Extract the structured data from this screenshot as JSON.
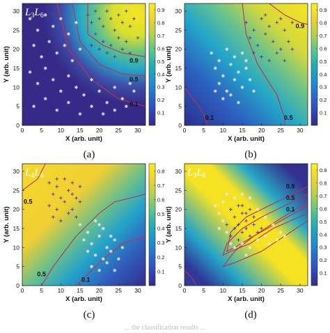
{
  "figure": {
    "caption": "... the classification results ..."
  },
  "chart_data": [
    {
      "type": "heatmap",
      "panel_label": "(a)",
      "title": "L3L6",
      "title_parts": [
        "L",
        "3",
        "L",
        "6"
      ],
      "xlabel": "X (arb. unit)",
      "ylabel": "Y (arb. unit)",
      "xlim": [
        0,
        32
      ],
      "ylim": [
        0,
        32
      ],
      "xticks": [
        0,
        5,
        10,
        15,
        20,
        25,
        30
      ],
      "yticks": [
        0,
        5,
        10,
        15,
        20,
        25,
        30
      ],
      "colorbar": {
        "range": [
          0,
          0.95
        ],
        "ticks": [
          "0.1",
          "0.2",
          "0.3",
          "0.4",
          "0.5",
          "0.6",
          "0.7",
          "0.8",
          "0.9"
        ]
      },
      "contour_levels": [
        "0.9",
        "0.5",
        "0.1"
      ],
      "colors": {
        "low": "#3a2f8f",
        "mid": "#20a8c8",
        "high": "#f5e02a",
        "contour": "#c0304a"
      },
      "series": [
        {
          "name": "class-plus",
          "marker": "+",
          "color": "#4a3a9a",
          "points": [
            [
              17,
              29
            ],
            [
              18,
              27
            ],
            [
              19,
              30
            ],
            [
              20,
              28
            ],
            [
              21,
              26
            ],
            [
              22,
              30
            ],
            [
              23,
              28
            ],
            [
              24,
              25
            ],
            [
              25,
              29
            ],
            [
              26,
              27
            ],
            [
              27,
              30
            ],
            [
              28,
              26
            ],
            [
              29,
              28
            ],
            [
              19,
              24
            ],
            [
              21,
              22
            ],
            [
              23,
              21
            ],
            [
              25,
              23
            ],
            [
              27,
              22
            ],
            [
              20,
              20
            ],
            [
              18,
              21
            ],
            [
              22,
              19
            ],
            [
              24,
              18
            ],
            [
              26,
              20
            ],
            [
              28,
              19
            ],
            [
              30,
              23
            ]
          ]
        },
        {
          "name": "class-star",
          "marker": "*",
          "color": "#e6e6ee",
          "points": [
            [
              2,
              28
            ],
            [
              4,
              25
            ],
            [
              6,
              29
            ],
            [
              8,
              26
            ],
            [
              10,
              28
            ],
            [
              12,
              24
            ],
            [
              14,
              27
            ],
            [
              3,
              21
            ],
            [
              5,
              18
            ],
            [
              7,
              22
            ],
            [
              9,
              19
            ],
            [
              11,
              21
            ],
            [
              13,
              17
            ],
            [
              15,
              20
            ],
            [
              2,
              14
            ],
            [
              4,
              11
            ],
            [
              6,
              15
            ],
            [
              8,
              12
            ],
            [
              10,
              9
            ],
            [
              12,
              13
            ],
            [
              14,
              10
            ],
            [
              16,
              8
            ],
            [
              18,
              12
            ],
            [
              20,
              9
            ],
            [
              22,
              6
            ],
            [
              24,
              10
            ],
            [
              26,
              7
            ],
            [
              28,
              11
            ],
            [
              3,
              5
            ],
            [
              6,
              7
            ],
            [
              9,
              4
            ],
            [
              12,
              6
            ],
            [
              15,
              3
            ],
            [
              18,
              5
            ],
            [
              21,
              3
            ],
            [
              24,
              4
            ],
            [
              27,
              5
            ],
            [
              29,
              9
            ]
          ]
        }
      ]
    },
    {
      "type": "heatmap",
      "panel_label": "(b)",
      "title": "",
      "xlabel": "X (arb. unit)",
      "ylabel": "Y (arb. unit)",
      "xlim": [
        0,
        32
      ],
      "ylim": [
        0,
        32
      ],
      "xticks": [
        0,
        5,
        10,
        15,
        20,
        25,
        30
      ],
      "yticks": [
        0,
        5,
        10,
        15,
        20,
        25,
        30
      ],
      "colorbar": {
        "range": [
          0,
          0.95
        ],
        "ticks": [
          "0.1",
          "0.2",
          "0.3",
          "0.4",
          "0.5",
          "0.6",
          "0.7",
          "0.8",
          "0.9"
        ]
      },
      "contour_levels": [
        "0.9",
        "0.5",
        "0.1"
      ],
      "colors": {
        "low": "#3a2f8f",
        "mid": "#20a8c8",
        "high": "#f5e02a",
        "contour": "#c0304a"
      },
      "series": [
        {
          "name": "class-plus",
          "marker": "+",
          "color": "#4a3a9a",
          "points": [
            [
              16,
              27
            ],
            [
              18,
              25
            ],
            [
              20,
              28
            ],
            [
              22,
              26
            ],
            [
              24,
              27
            ],
            [
              26,
              25
            ],
            [
              28,
              27
            ],
            [
              17,
              23
            ],
            [
              19,
              21
            ],
            [
              21,
              24
            ],
            [
              23,
              22
            ],
            [
              25,
              20
            ],
            [
              27,
              22
            ],
            [
              18,
              19
            ],
            [
              20,
              18
            ],
            [
              22,
              17
            ],
            [
              24,
              19
            ],
            [
              26,
              17
            ],
            [
              28,
              20
            ],
            [
              21,
              29
            ],
            [
              25,
              28
            ]
          ]
        },
        {
          "name": "class-star",
          "marker": "*",
          "color": "#e6e6ee",
          "points": [
            [
              7,
              19
            ],
            [
              9,
              17
            ],
            [
              11,
              20
            ],
            [
              13,
              18
            ],
            [
              15,
              19
            ],
            [
              8,
              15
            ],
            [
              10,
              13
            ],
            [
              12,
              16
            ],
            [
              14,
              14
            ],
            [
              16,
              15
            ],
            [
              9,
              11
            ],
            [
              11,
              9
            ],
            [
              13,
              12
            ],
            [
              15,
              10
            ],
            [
              17,
              12
            ],
            [
              10,
              7
            ],
            [
              12,
              8
            ],
            [
              14,
              6
            ],
            [
              18,
              9
            ],
            [
              8,
              9
            ],
            [
              16,
              17
            ]
          ]
        }
      ]
    },
    {
      "type": "heatmap",
      "panel_label": "(c)",
      "title": "L4L6",
      "title_parts": [
        "L",
        "4",
        "L",
        "6"
      ],
      "xlabel": "X (arb. unit)",
      "ylabel": "Y (arb. unit)",
      "xlim": [
        0,
        32
      ],
      "ylim": [
        0,
        32
      ],
      "xticks": [
        0,
        5,
        10,
        15,
        20,
        25,
        30
      ],
      "yticks": [
        0,
        5,
        10,
        15,
        20,
        25,
        30
      ],
      "colorbar": {
        "range": [
          0,
          0.85
        ],
        "ticks": [
          "0.1",
          "0.2",
          "0.3",
          "0.4",
          "0.5",
          "0.6",
          "0.7",
          "0.8"
        ]
      },
      "contour_levels": [
        "0.5",
        "0.5",
        "0.1"
      ],
      "colors": {
        "low": "#3a2f8f",
        "mid": "#20a8c8",
        "high": "#f5e02a",
        "contour": "#c0304a"
      },
      "series": [
        {
          "name": "class-plus",
          "marker": "+",
          "color": "#4a3a9a",
          "points": [
            [
              7,
              27
            ],
            [
              9,
              26
            ],
            [
              11,
              28
            ],
            [
              13,
              27
            ],
            [
              15,
              26
            ],
            [
              8,
              24
            ],
            [
              10,
              23
            ],
            [
              12,
              25
            ],
            [
              14,
              23
            ],
            [
              7,
              21
            ],
            [
              9,
              20
            ],
            [
              11,
              22
            ],
            [
              13,
              20
            ],
            [
              15,
              22
            ],
            [
              8,
              18
            ],
            [
              10,
              17
            ],
            [
              12,
              19
            ],
            [
              14,
              18
            ],
            [
              9,
              28
            ],
            [
              13,
              24
            ]
          ]
        },
        {
          "name": "class-star",
          "marker": "*",
          "color": "#e6e6ee",
          "points": [
            [
              15,
              16
            ],
            [
              17,
              14
            ],
            [
              19,
              17
            ],
            [
              21,
              15
            ],
            [
              23,
              13
            ],
            [
              16,
              12
            ],
            [
              18,
              11
            ],
            [
              20,
              13
            ],
            [
              22,
              10
            ],
            [
              24,
              12
            ],
            [
              17,
              9
            ],
            [
              19,
              8
            ],
            [
              21,
              7
            ],
            [
              23,
              9
            ],
            [
              25,
              7
            ],
            [
              18,
              5
            ],
            [
              20,
              4
            ],
            [
              22,
              6
            ],
            [
              24,
              4
            ],
            [
              26,
              10
            ],
            [
              20,
              16
            ]
          ]
        }
      ]
    },
    {
      "type": "heatmap",
      "panel_label": "(d)",
      "title": "L3L6",
      "title_parts": [
        "L",
        "3",
        "L",
        "6"
      ],
      "xlabel": "X (arb. unit)",
      "ylabel": "Y (arb. unit)",
      "xlim": [
        0,
        32
      ],
      "ylim": [
        0,
        32
      ],
      "xticks": [
        0,
        5,
        10,
        15,
        20,
        25,
        30
      ],
      "yticks": [
        0,
        5,
        10,
        15,
        20,
        25,
        30
      ],
      "colorbar": {
        "range": [
          0,
          0.95
        ],
        "ticks": [
          "0.1",
          "0.2",
          "0.3",
          "0.4",
          "0.5",
          "0.6",
          "0.7",
          "0.8",
          "0.9"
        ]
      },
      "contour_levels": [
        "0.9",
        "0.5",
        "0.1"
      ],
      "colors": {
        "low": "#3a2f8f",
        "mid": "#20a8c8",
        "high": "#f5e02a",
        "contour": "#c0304a"
      },
      "series": [
        {
          "name": "class-plus",
          "marker": "+",
          "color": "#4a3a9a",
          "points": [
            [
              12,
              20
            ],
            [
              13,
              18
            ],
            [
              14,
              21
            ],
            [
              15,
              19
            ],
            [
              16,
              17
            ],
            [
              17,
              20
            ],
            [
              13,
              15
            ],
            [
              14,
              16
            ],
            [
              15,
              14
            ],
            [
              16,
              15
            ],
            [
              17,
              13
            ],
            [
              18,
              16
            ],
            [
              19,
              14
            ],
            [
              12,
              13
            ],
            [
              14,
              12
            ],
            [
              16,
              19
            ],
            [
              18,
              18
            ],
            [
              15,
              21
            ],
            [
              20,
              15
            ],
            [
              11,
              16
            ]
          ]
        },
        {
          "name": "class-star",
          "marker": "*",
          "color": "#e6e6ee",
          "points": [
            [
              8,
              21
            ],
            [
              9,
              19
            ],
            [
              10,
              17
            ],
            [
              11,
              14
            ],
            [
              12,
              11
            ],
            [
              13,
              10
            ],
            [
              15,
              11
            ],
            [
              17,
              10
            ],
            [
              19,
              12
            ],
            [
              21,
              13
            ],
            [
              22,
              11
            ],
            [
              24,
              12
            ],
            [
              26,
              13
            ],
            [
              10,
              22
            ],
            [
              11,
              24
            ],
            [
              13,
              23
            ],
            [
              15,
              24
            ],
            [
              17,
              23
            ],
            [
              19,
              20
            ],
            [
              21,
              18
            ],
            [
              23,
              16
            ],
            [
              25,
              14
            ],
            [
              9,
              15
            ],
            [
              16,
              8
            ]
          ]
        }
      ]
    }
  ]
}
